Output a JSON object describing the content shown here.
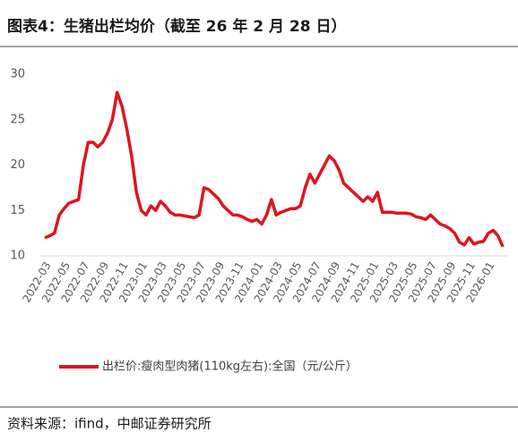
{
  "chart_data": {
    "type": "line",
    "title": "图表4：生猪出栏均价（截至 26 年 2 月 28 日）",
    "source": "资料来源：ifind，中邮证券研究所",
    "categories": [
      "2022-03",
      null,
      null,
      null,
      "2022-05",
      null,
      null,
      null,
      "2022-07",
      null,
      null,
      null,
      "2022-09",
      null,
      null,
      null,
      "2022-11",
      null,
      null,
      null,
      "2023-01",
      null,
      null,
      null,
      "2023-03",
      null,
      null,
      null,
      "2023-05",
      null,
      null,
      null,
      "2023-07",
      null,
      null,
      null,
      "2023-09",
      null,
      null,
      null,
      "2023-11",
      null,
      null,
      null,
      "2024-01",
      null,
      null,
      null,
      "2024-03",
      null,
      null,
      null,
      "2024-05",
      null,
      null,
      null,
      "2024-07",
      null,
      null,
      null,
      "2024-09",
      null,
      null,
      null,
      "2024-11",
      null,
      null,
      null,
      "2025-01",
      null,
      null,
      null,
      "2025-03",
      null,
      null,
      null,
      "2025-05",
      null,
      null,
      null,
      "2025-07",
      null,
      null,
      null,
      "2025-09",
      null,
      null,
      null,
      "2025-11",
      null,
      null,
      null,
      "2026-01",
      null,
      null,
      null
    ],
    "series": [
      {
        "name": "出栏价:瘦肉型肉猪(110kg左右):全国（元/公斤）",
        "color": "#e0141e",
        "values": [
          12,
          12.2,
          12.5,
          14.5,
          15.2,
          15.8,
          16,
          16.2,
          20,
          22.5,
          22.5,
          22,
          22.5,
          23.5,
          25,
          28,
          26.5,
          24,
          21,
          17,
          15,
          14.5,
          15.5,
          15,
          16,
          15.5,
          14.8,
          14.5,
          14.5,
          14.4,
          14.3,
          14.2,
          14.5,
          17.5,
          17.3,
          16.8,
          16.3,
          15.5,
          15,
          14.5,
          14.5,
          14.3,
          14,
          13.8,
          14,
          13.5,
          14.5,
          16.2,
          14.5,
          14.8,
          15,
          15.2,
          15.2,
          15.5,
          17.5,
          19,
          18,
          19,
          20,
          21,
          20.5,
          19.5,
          18,
          17.5,
          17,
          16.5,
          16,
          16.5,
          16,
          17,
          14.8,
          14.8,
          14.8,
          14.7,
          14.7,
          14.7,
          14.6,
          14.3,
          14.2,
          14,
          14.5,
          14,
          13.5,
          13.3,
          13,
          12.5,
          11.5,
          11.2,
          12,
          11.3,
          11.5,
          11.6,
          12.5,
          12.8,
          12.2,
          11
        ]
      }
    ],
    "ylim": [
      10,
      30
    ],
    "yticks": [
      10,
      15,
      20,
      25,
      30
    ],
    "grid": false
  }
}
